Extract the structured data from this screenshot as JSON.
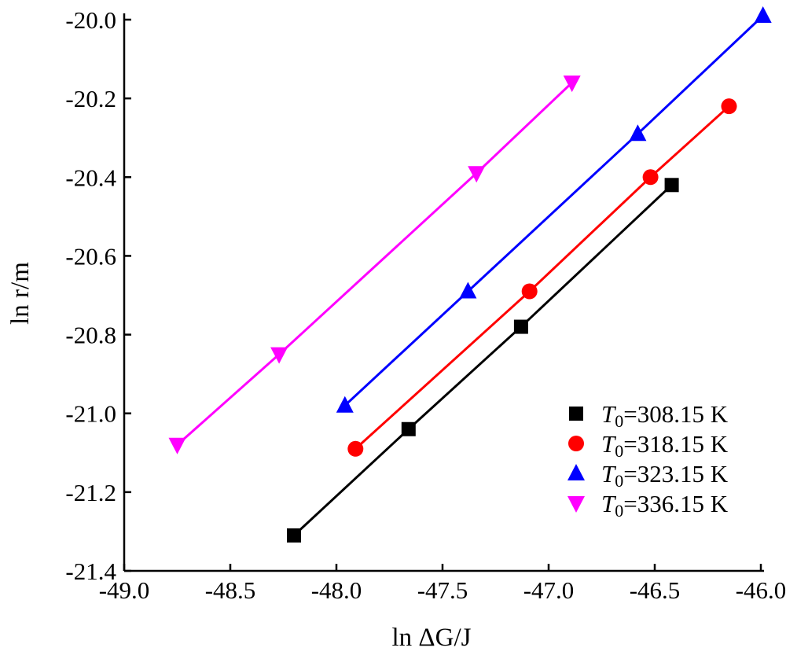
{
  "chart_data": {
    "type": "line",
    "title": "",
    "xlabel": "ln ΔG/J",
    "ylabel": "ln r/m",
    "xlim": [
      -49.0,
      -46.0
    ],
    "ylim": [
      -21.4,
      -20.0
    ],
    "xticks": [
      -49.0,
      -48.5,
      -48.0,
      -47.5,
      -47.0,
      -46.5,
      -46.0
    ],
    "yticks": [
      -20.0,
      -20.2,
      -20.4,
      -20.6,
      -20.8,
      -21.0,
      -21.2,
      -21.4
    ],
    "xtick_labels": [
      "-49.0",
      "-48.5",
      "-48.0",
      "-47.5",
      "-47.0",
      "-46.5",
      "-46.0"
    ],
    "ytick_labels": [
      "-20.0",
      "-20.2",
      "-20.4",
      "-20.6",
      "-20.8",
      "-21.0",
      "-21.2",
      "-21.4"
    ],
    "grid": false,
    "legend_position": "bottom-right",
    "series": [
      {
        "name": "T0=308.15 K",
        "legend_var": "T",
        "legend_sub": "0",
        "legend_rest": "=308.15 K",
        "marker": "square",
        "color": "#000000",
        "x": [
          -48.2,
          -47.66,
          -47.13,
          -46.42
        ],
        "y": [
          -21.31,
          -21.04,
          -20.78,
          -20.42
        ]
      },
      {
        "name": "T0=318.15 K",
        "legend_var": "T",
        "legend_sub": "0",
        "legend_rest": "=318.15 K",
        "marker": "circle",
        "color": "#ff0000",
        "x": [
          -47.91,
          -47.09,
          -46.52,
          -46.15
        ],
        "y": [
          -21.09,
          -20.69,
          -20.4,
          -20.22
        ]
      },
      {
        "name": "T0=323.15 K",
        "legend_var": "T",
        "legend_sub": "0",
        "legend_rest": "=323.15 K",
        "marker": "triangle-up",
        "color": "#0000ff",
        "x": [
          -47.96,
          -47.38,
          -46.58,
          -45.99
        ],
        "y": [
          -20.98,
          -20.69,
          -20.29,
          -19.99
        ]
      },
      {
        "name": "T0=336.15 K",
        "legend_var": "T",
        "legend_sub": "0",
        "legend_rest": "=336.15 K",
        "marker": "triangle-down",
        "color": "#ff00ff",
        "x": [
          -48.75,
          -48.27,
          -47.34,
          -46.89
        ],
        "y": [
          -21.08,
          -20.85,
          -20.39,
          -20.16
        ]
      }
    ]
  }
}
